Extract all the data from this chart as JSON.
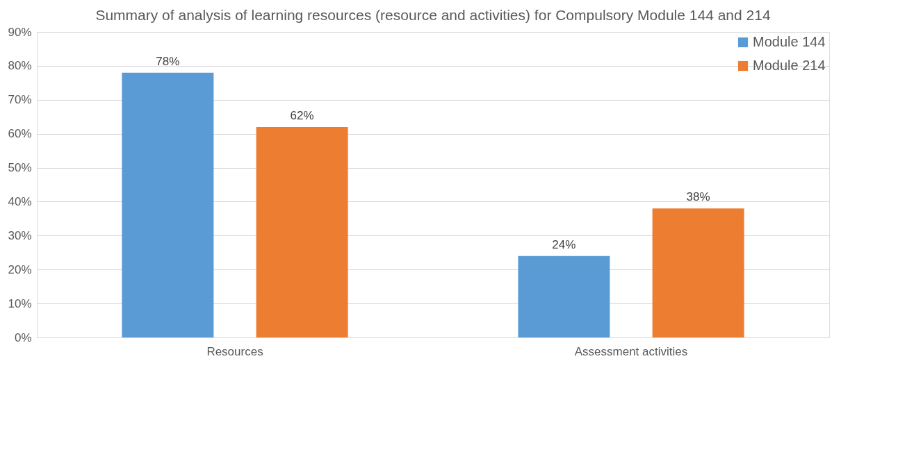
{
  "chart_data": {
    "type": "bar",
    "title": "Summary of analysis of learning resources (resource and activities) for Compulsory Module 144 and 214",
    "categories": [
      "Resources",
      "Assessment activities"
    ],
    "series": [
      {
        "name": "Module 144",
        "color": "#5b9bd5",
        "values": [
          78,
          24
        ],
        "value_labels": [
          "78%",
          "24%"
        ]
      },
      {
        "name": "Module 214",
        "color": "#ed7d31",
        "values": [
          62,
          38
        ],
        "value_labels": [
          "62%",
          "38%"
        ]
      }
    ],
    "ylim": [
      0,
      90
    ],
    "yticks": [
      {
        "value": 0,
        "label": "0%"
      },
      {
        "value": 10,
        "label": "10%"
      },
      {
        "value": 20,
        "label": "20%"
      },
      {
        "value": 30,
        "label": "30%"
      },
      {
        "value": 40,
        "label": "40%"
      },
      {
        "value": 50,
        "label": "50%"
      },
      {
        "value": 60,
        "label": "60%"
      },
      {
        "value": 70,
        "label": "70%"
      },
      {
        "value": 80,
        "label": "80%"
      },
      {
        "value": 90,
        "label": "90%"
      }
    ],
    "grid": "y",
    "legend": "top right"
  }
}
